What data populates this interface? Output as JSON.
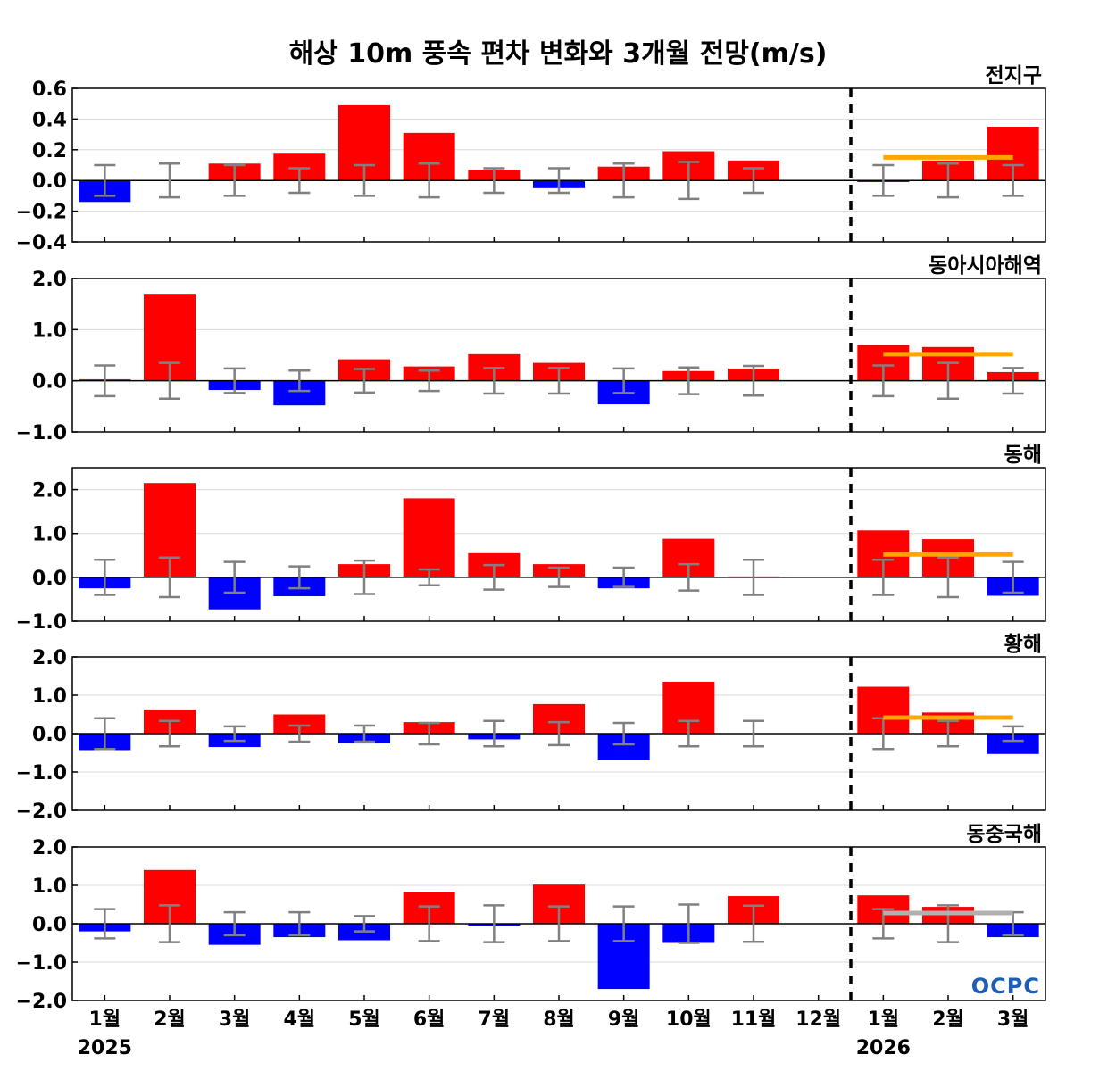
{
  "chart_data": {
    "type": "bar",
    "title": "해상 10m 풍속 편차 변화와 3개월 전망(m/s)",
    "categories": [
      "1월",
      "2월",
      "3월",
      "4월",
      "5월",
      "6월",
      "7월",
      "8월",
      "9월",
      "10월",
      "11월",
      "12월",
      "1월",
      "2월",
      "3월"
    ],
    "years": [
      {
        "label": "2025",
        "at": 0
      },
      {
        "label": "2026",
        "at": 12
      }
    ],
    "forecast_divider_between": [
      11,
      12
    ],
    "colors": {
      "positive": "#ff0000",
      "negative": "#0000ff",
      "error_bar": "#808080",
      "forecast_line": "#ffa500",
      "forecast_line_alt": "#b0b0b0",
      "divider": "#000000"
    },
    "logo": "OCPC",
    "panels": [
      {
        "name": "전지구",
        "ylim": [
          -0.4,
          0.6
        ],
        "yticks": [
          -0.4,
          -0.2,
          0.0,
          0.2,
          0.4,
          0.6
        ],
        "tick_decimals": 1,
        "values": [
          -0.14,
          0.0,
          0.11,
          0.18,
          0.49,
          0.31,
          0.07,
          -0.05,
          0.09,
          0.19,
          0.13,
          0.0,
          -0.01,
          0.13,
          0.35
        ],
        "error": [
          0.1,
          0.11,
          0.1,
          0.08,
          0.1,
          0.11,
          0.08,
          0.08,
          0.11,
          0.12,
          0.08,
          0.0,
          0.1,
          0.11,
          0.1
        ],
        "forecast": {
          "from": 12,
          "to": 14,
          "value": 0.15,
          "color": "forecast_line"
        }
      },
      {
        "name": "동아시아해역",
        "ylim": [
          -1.0,
          2.0
        ],
        "yticks": [
          -1.0,
          0.0,
          1.0,
          2.0
        ],
        "tick_decimals": 1,
        "values": [
          0.03,
          1.7,
          -0.18,
          -0.48,
          0.42,
          0.28,
          0.52,
          0.35,
          -0.46,
          0.19,
          0.24,
          0.0,
          0.7,
          0.66,
          0.17
        ],
        "error": [
          0.3,
          0.35,
          0.24,
          0.2,
          0.23,
          0.2,
          0.25,
          0.25,
          0.24,
          0.26,
          0.29,
          0.0,
          0.3,
          0.35,
          0.25
        ],
        "forecast": {
          "from": 12,
          "to": 14,
          "value": 0.52,
          "color": "forecast_line"
        }
      },
      {
        "name": "동해",
        "ylim": [
          -1.0,
          2.5
        ],
        "yticks": [
          -1.0,
          0.0,
          1.0,
          2.0
        ],
        "tick_decimals": 1,
        "values": [
          -0.25,
          2.15,
          -0.73,
          -0.43,
          0.3,
          1.8,
          0.55,
          0.3,
          -0.25,
          0.88,
          0.02,
          0.0,
          1.07,
          0.87,
          -0.42
        ],
        "error": [
          0.4,
          0.45,
          0.35,
          0.25,
          0.38,
          0.18,
          0.28,
          0.22,
          0.22,
          0.3,
          0.4,
          0.0,
          0.4,
          0.45,
          0.35
        ],
        "forecast": {
          "from": 12,
          "to": 14,
          "value": 0.52,
          "color": "forecast_line"
        }
      },
      {
        "name": "황해",
        "ylim": [
          -2.0,
          2.0
        ],
        "yticks": [
          -2.0,
          -1.0,
          0.0,
          1.0,
          2.0
        ],
        "tick_decimals": 1,
        "values": [
          -0.43,
          0.63,
          -0.35,
          0.5,
          -0.25,
          0.3,
          -0.15,
          0.77,
          -0.68,
          1.35,
          0.0,
          0.0,
          1.22,
          0.55,
          -0.53
        ],
        "error": [
          0.4,
          0.33,
          0.19,
          0.21,
          0.21,
          0.28,
          0.33,
          0.3,
          0.28,
          0.33,
          0.33,
          0.0,
          0.4,
          0.33,
          0.19
        ],
        "forecast": {
          "from": 12,
          "to": 14,
          "value": 0.42,
          "color": "forecast_line"
        }
      },
      {
        "name": "동중국해",
        "ylim": [
          -2.0,
          2.0
        ],
        "yticks": [
          -2.0,
          -1.0,
          0.0,
          1.0,
          2.0
        ],
        "tick_decimals": 1,
        "values": [
          -0.2,
          1.4,
          -0.55,
          -0.35,
          -0.43,
          0.82,
          -0.05,
          1.02,
          -1.7,
          -0.5,
          0.72,
          0.0,
          0.74,
          0.44,
          -0.35
        ],
        "error": [
          0.38,
          0.48,
          0.3,
          0.3,
          0.2,
          0.45,
          0.48,
          0.45,
          0.45,
          0.5,
          0.47,
          0.0,
          0.38,
          0.48,
          0.3
        ],
        "forecast": {
          "from": 12,
          "to": 14,
          "value": 0.28,
          "color": "forecast_line_alt"
        }
      }
    ]
  }
}
